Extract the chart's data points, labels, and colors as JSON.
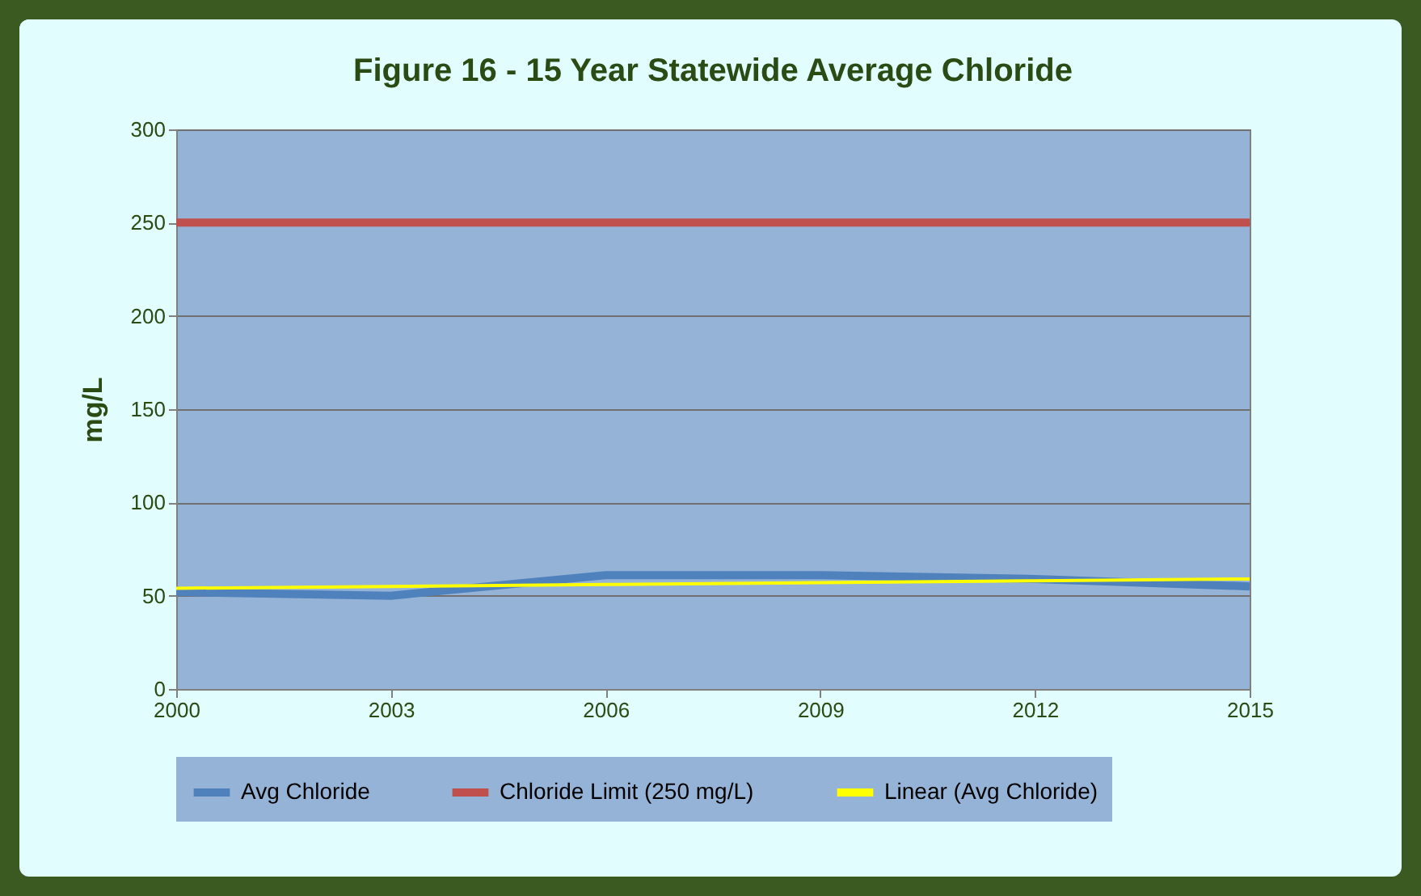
{
  "chart_data": {
    "type": "line",
    "title": "Figure 16 - 15 Year Statewide Average Chloride",
    "ylabel": "mg/L",
    "x": [
      2000,
      2003,
      2006,
      2009,
      2012,
      2015
    ],
    "series": [
      {
        "name": "Avg Chloride",
        "color": "#4f81bd",
        "values": [
          52,
          50,
          61,
          61,
          59,
          55
        ]
      },
      {
        "name": "Linear (Avg Chloride)",
        "color": "#ffff00",
        "values": [
          54,
          55,
          56,
          57,
          58,
          59
        ]
      }
    ],
    "ref_lines": [
      {
        "axis": "y",
        "value": 250,
        "label": "Chloride Limit (250 mg/L)",
        "color": "#c0504d"
      }
    ],
    "xlim": [
      2000,
      2015
    ],
    "xticks": [
      2000,
      2003,
      2006,
      2009,
      2012,
      2015
    ],
    "ylim": [
      0,
      300
    ],
    "yticks": [
      0,
      50,
      100,
      150,
      200,
      250,
      300
    ],
    "grid": "y",
    "legend": "bottom",
    "marker": "none",
    "line_style": "solid"
  }
}
